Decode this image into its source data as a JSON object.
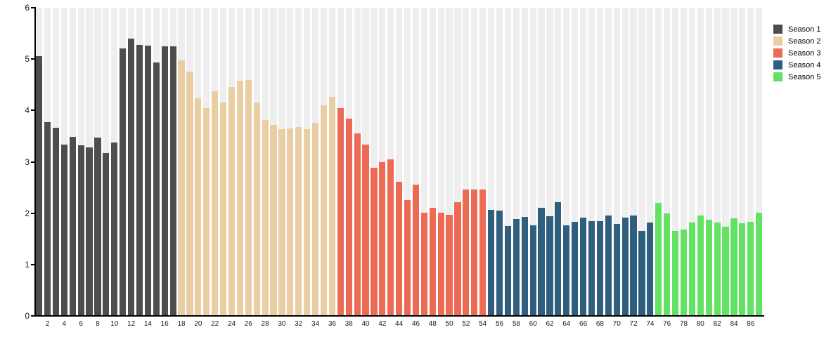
{
  "chart_data": {
    "type": "bar",
    "title": "",
    "xlabel": "",
    "ylabel": "",
    "ylim": [
      0,
      6
    ],
    "y_tick_labels": [
      "0",
      "1",
      "2",
      "3",
      "4",
      "5",
      "6"
    ],
    "x_tick_labels": [
      2,
      4,
      6,
      8,
      10,
      12,
      14,
      16,
      18,
      20,
      22,
      24,
      26,
      28,
      30,
      32,
      34,
      36,
      38,
      40,
      42,
      44,
      46,
      48,
      50,
      52,
      54,
      56,
      58,
      60,
      62,
      64,
      66,
      68,
      70,
      72,
      74,
      76,
      78,
      80,
      82,
      84,
      86
    ],
    "total_bars": 87,
    "grid": "vertical-background-stripes",
    "stripe_color": "#eeeeee",
    "axis_color": "#000000",
    "legend_position": "top-right",
    "series": [
      {
        "name": "Season 1",
        "color": "#4d4d4d",
        "episodes": "1-17",
        "values": [
          5.06,
          3.77,
          3.66,
          3.34,
          3.48,
          3.32,
          3.28,
          3.47,
          3.17,
          3.37,
          5.21,
          5.4,
          5.28,
          5.26,
          4.93,
          5.25,
          5.25
        ]
      },
      {
        "name": "Season 2",
        "color": "#e9cda3",
        "episodes": "18-36",
        "values": [
          4.97,
          4.76,
          4.24,
          4.05,
          4.38,
          4.16,
          4.46,
          4.58,
          4.59,
          4.16,
          3.81,
          3.72,
          3.64,
          3.65,
          3.68,
          3.63,
          3.76,
          4.1,
          4.27
        ]
      },
      {
        "name": "Season 3",
        "color": "#ed6a54",
        "episodes": "37-54",
        "values": [
          4.04,
          3.84,
          3.56,
          3.34,
          2.89,
          2.99,
          3.05,
          2.61,
          2.25,
          2.56,
          2.01,
          2.1,
          2.01,
          1.97,
          2.21,
          2.46,
          2.46,
          2.46
        ]
      },
      {
        "name": "Season 4",
        "color": "#305e7e",
        "episodes": "55-74",
        "values": [
          2.07,
          2.05,
          1.75,
          1.88,
          1.93,
          1.76,
          2.1,
          1.94,
          2.22,
          1.76,
          1.83,
          1.91,
          1.84,
          1.85,
          1.95,
          1.79,
          1.91,
          1.96,
          1.66,
          1.82
        ]
      },
      {
        "name": "Season 5",
        "color": "#62e162",
        "episodes": "75-87",
        "values": [
          2.2,
          2.0,
          1.65,
          1.68,
          1.82,
          1.95,
          1.87,
          1.82,
          1.74,
          1.9,
          1.8,
          1.83,
          2.01
        ]
      }
    ]
  }
}
